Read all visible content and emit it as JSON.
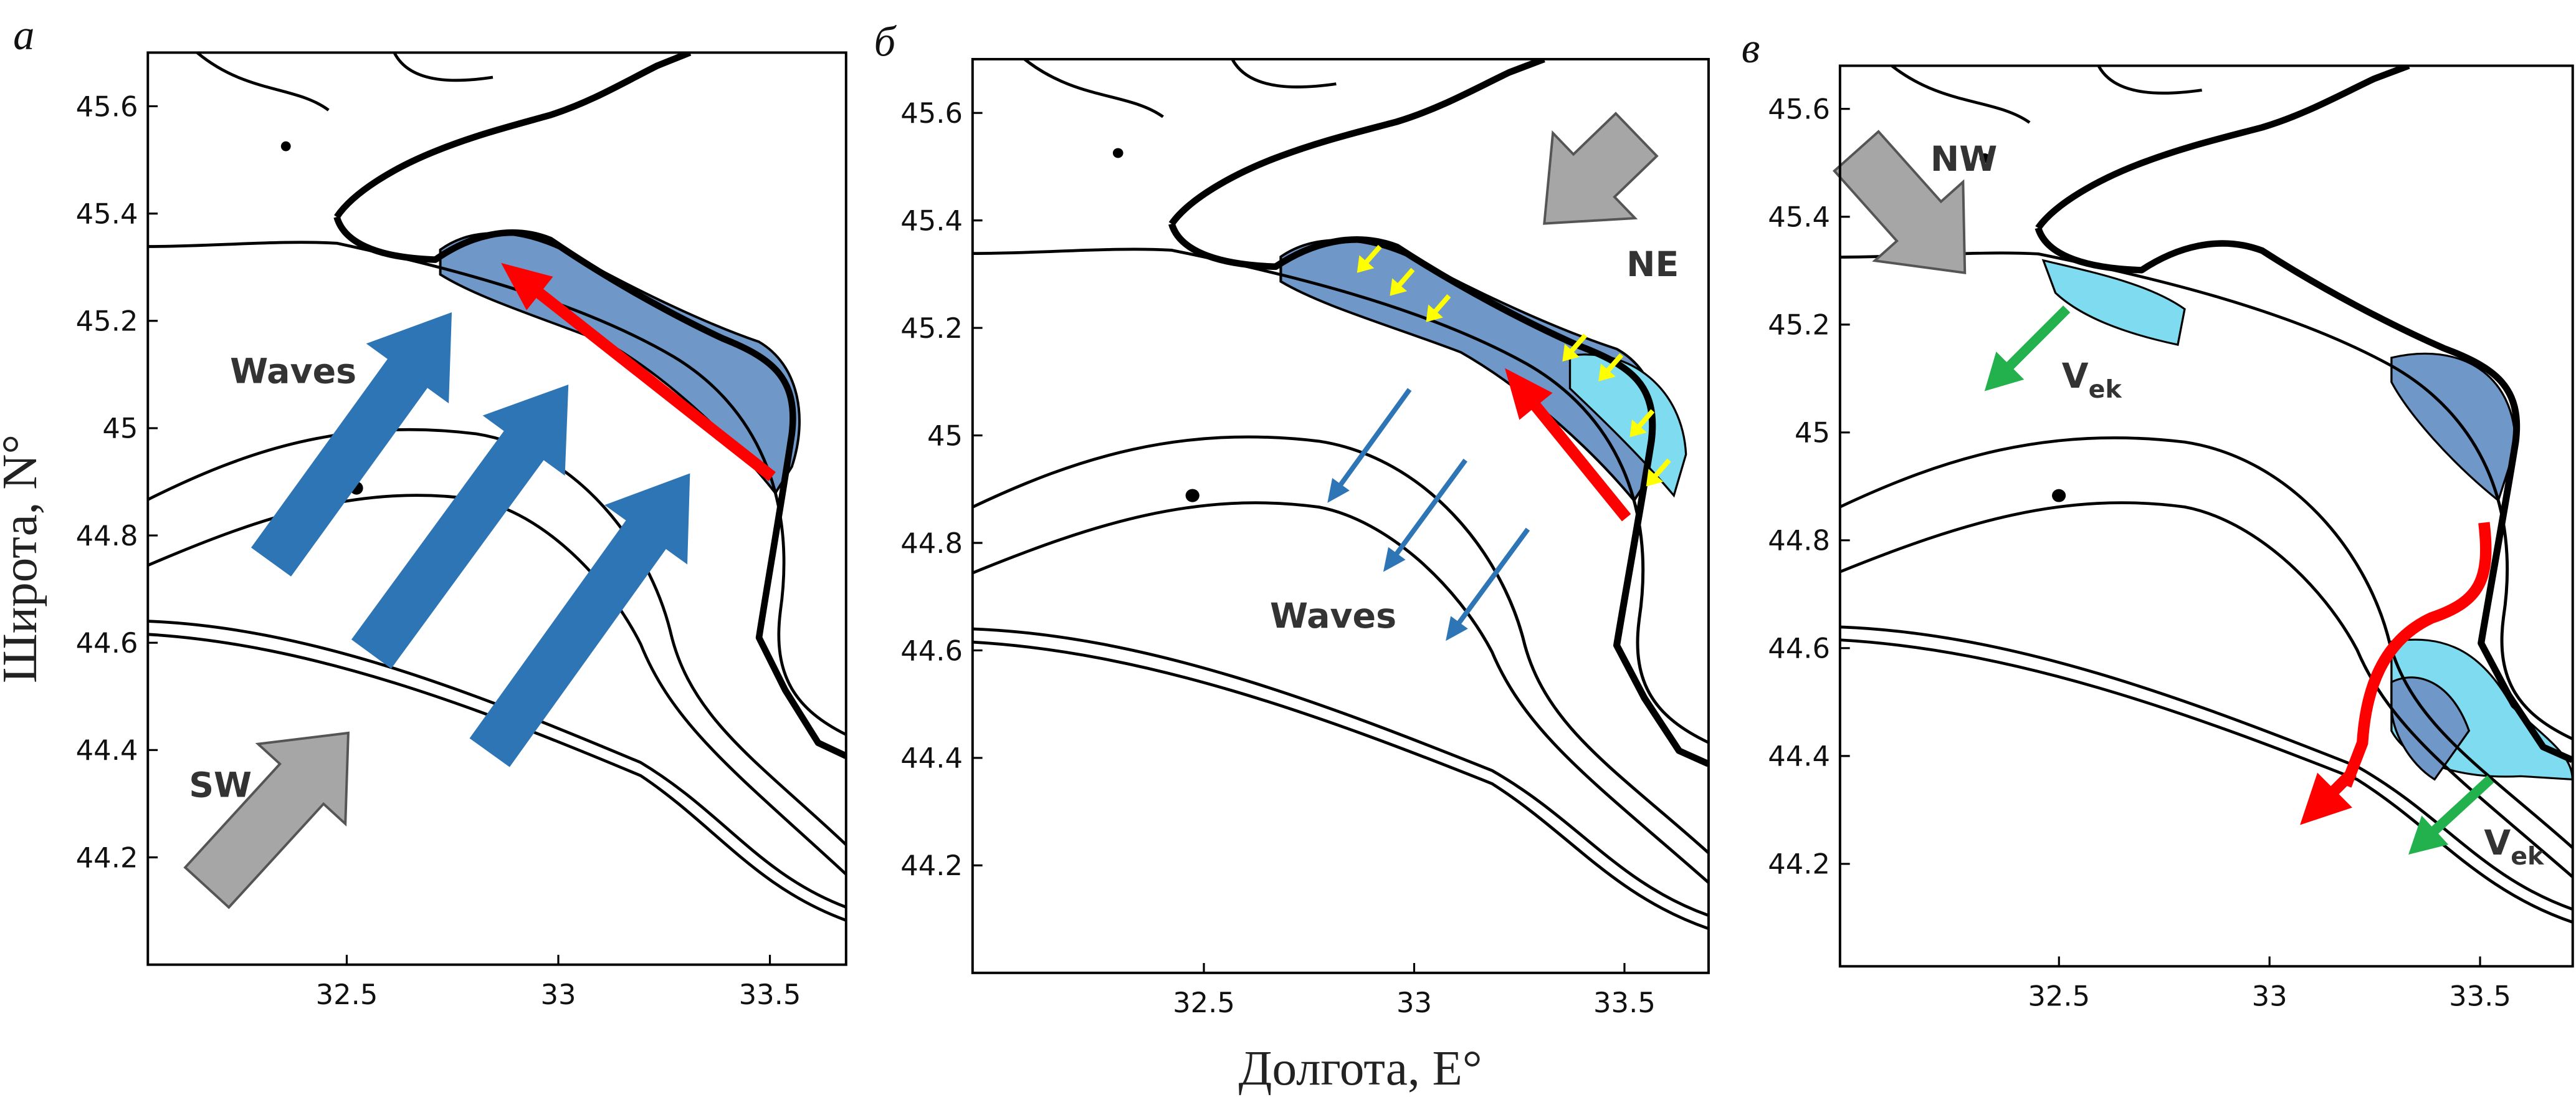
{
  "panels": [
    {
      "label": "а",
      "xlim": [
        32.03,
        33.68
      ],
      "ylim": [
        44.0,
        45.7
      ],
      "xticks": [
        32.5,
        33,
        33.5
      ],
      "yticks": [
        44.2,
        44.4,
        44.6,
        44.8,
        45,
        45.2,
        45.4,
        45.6
      ],
      "annotations": {
        "waves": "Waves",
        "wind": "SW"
      }
    },
    {
      "label": "б",
      "xlim": [
        31.95,
        33.7
      ],
      "ylim": [
        44.0,
        45.7
      ],
      "xticks": [
        32.5,
        33,
        33.5
      ],
      "yticks": [
        44.2,
        44.4,
        44.6,
        44.8,
        45,
        45.2,
        45.4,
        45.6
      ],
      "annotations": {
        "waves": "Waves",
        "wind": "NE"
      }
    },
    {
      "label": "в",
      "xlim": [
        31.98,
        33.72
      ],
      "ylim": [
        44.01,
        45.68
      ],
      "xticks": [
        32.5,
        33,
        33.5
      ],
      "yticks": [
        44.2,
        44.4,
        44.6,
        44.8,
        45,
        45.2,
        45.4,
        45.6
      ],
      "annotations": {
        "wind": "NW",
        "v1": "V",
        "v1_sub": "ek",
        "v2": "V",
        "v2_sub": "ek"
      }
    }
  ],
  "y_axis_label": "Широта, N°",
  "x_axis_label": "Долгота, E°"
}
